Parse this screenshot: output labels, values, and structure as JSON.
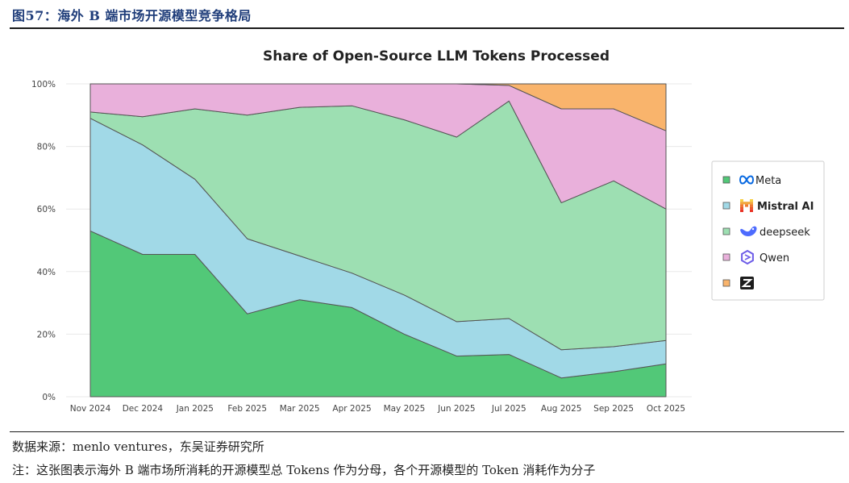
{
  "figure_title": "图57：海外 B 端市场开源模型竞争格局",
  "source_note": "数据来源：menlo ventures，东吴证券研究所",
  "foot_note": "注：这张图表示海外 B 端市场所消耗的开源模型总 Tokens 作为分母，各个开源模型的 Token 消耗作为分子",
  "chart_data": {
    "type": "area",
    "stacked": true,
    "title": "Share of Open-Source LLM Tokens Processed",
    "xlabel": "",
    "ylabel": "",
    "ylim": [
      0,
      100
    ],
    "yticks": [
      0,
      20,
      40,
      60,
      80,
      100
    ],
    "ytick_labels": [
      "0%",
      "20%",
      "40%",
      "60%",
      "80%",
      "100%"
    ],
    "grid": true,
    "legend_position": "right",
    "categories": [
      "Nov 2024",
      "Dec 2024",
      "Jan 2025",
      "Feb 2025",
      "Mar 2025",
      "Apr 2025",
      "May 2025",
      "Jun 2025",
      "Jul 2025",
      "Aug 2025",
      "Sep 2025",
      "Oct 2025"
    ],
    "series": [
      {
        "name": "Meta",
        "color": "#52c878",
        "icon": "meta-logo-icon",
        "values": [
          53,
          45.5,
          45.5,
          26.5,
          31,
          28.5,
          20,
          13,
          13.5,
          6,
          8,
          10.5
        ]
      },
      {
        "name": "Mistral AI",
        "color": "#a1d9e7",
        "icon": "mistral-logo-icon",
        "values": [
          36,
          35,
          24,
          24,
          14,
          11,
          12.5,
          11,
          11.5,
          9,
          8,
          7.5
        ]
      },
      {
        "name": "deepseek",
        "color": "#9ddfb2",
        "icon": "deepseek-whale-icon",
        "values": [
          2,
          9,
          22.5,
          39.5,
          47.5,
          53.5,
          56,
          59,
          69.5,
          47,
          53,
          42
        ]
      },
      {
        "name": "Qwen",
        "color": "#e9b0db",
        "icon": "qwen-logo-icon",
        "values": [
          9,
          10.5,
          8,
          10,
          7.5,
          7,
          11.5,
          17,
          5,
          30,
          23,
          25
        ]
      },
      {
        "name": "Z",
        "color": "#f9b46c",
        "icon": "z-logo-icon",
        "values": [
          0,
          0,
          0,
          0,
          0,
          0,
          0,
          0,
          0.5,
          8,
          8,
          15
        ]
      }
    ]
  }
}
